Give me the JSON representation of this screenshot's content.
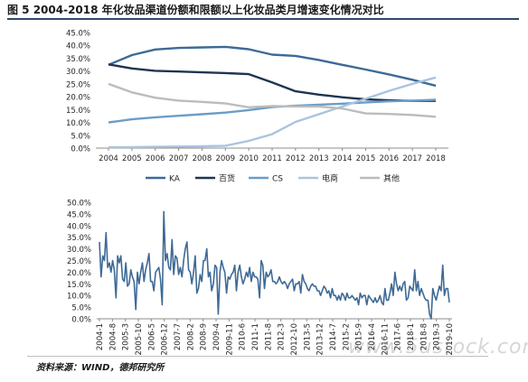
{
  "figure_title": "图 5 2004-2018 年化妆品渠道份额和限额以上化妆品类月增速变化情况对比",
  "source_text": "资料来源：WIND，德邦研究所",
  "watermark": "www.5ustock.com",
  "chart_data": [
    {
      "type": "line",
      "x": [
        "2004",
        "2005",
        "2006",
        "2007",
        "2008",
        "2009",
        "2010",
        "2011",
        "2012",
        "2013",
        "2014",
        "2015",
        "2016",
        "2017",
        "2018"
      ],
      "ylim": [
        0,
        45
      ],
      "yticks": [
        "0.0%",
        "5.0%",
        "10.0%",
        "15.0%",
        "20.0%",
        "25.0%",
        "30.0%",
        "35.0%",
        "40.0%",
        "45.0%"
      ],
      "legend_position": "bottom",
      "grid": false,
      "series": [
        {
          "name": "KA",
          "color": "#3e6a96",
          "values": [
            32.4,
            36.2,
            38.4,
            39.0,
            39.2,
            39.4,
            38.5,
            36.4,
            35.9,
            34.3,
            32.4,
            30.6,
            28.7,
            26.6,
            24.3
          ]
        },
        {
          "name": "百货",
          "color": "#1f3550",
          "values": [
            32.6,
            31.0,
            30.1,
            29.8,
            29.5,
            29.2,
            28.8,
            25.6,
            22.1,
            20.8,
            19.8,
            19.0,
            18.6,
            18.4,
            18.4
          ]
        },
        {
          "name": "CS",
          "color": "#6b9dc8",
          "values": [
            10.0,
            11.2,
            12.0,
            12.6,
            13.2,
            13.8,
            14.8,
            16.0,
            16.5,
            16.9,
            17.3,
            17.8,
            18.2,
            18.5,
            18.8
          ]
        },
        {
          "name": "电商",
          "color": "#a9c4de",
          "values": [
            0.3,
            0.4,
            0.5,
            0.6,
            0.7,
            0.9,
            2.8,
            5.4,
            10.2,
            13.2,
            16.2,
            19.2,
            22.3,
            25.0,
            27.5
          ]
        },
        {
          "name": "其他",
          "color": "#bcbcbc",
          "values": [
            25.0,
            21.7,
            19.6,
            18.5,
            18.0,
            17.4,
            15.9,
            16.4,
            16.2,
            16.2,
            15.4,
            13.5,
            13.3,
            12.9,
            12.2
          ]
        }
      ]
    },
    {
      "type": "line",
      "ylim": [
        0,
        50
      ],
      "yticks": [
        "0.0%",
        "5.0%",
        "10.0%",
        "15.0%",
        "20.0%",
        "25.0%",
        "30.0%",
        "35.0%",
        "40.0%",
        "45.0%",
        "50.0%"
      ],
      "xticks": [
        "2004-1",
        "2004-8",
        "2005-3",
        "2005-10",
        "2006-5",
        "2006-12",
        "2007-7",
        "2008-2",
        "2008-9",
        "2009-4",
        "2009-11",
        "2010-6",
        "2011-1",
        "2011-8",
        "2012-3",
        "2012-10",
        "2013-5",
        "2013-12",
        "2014-7",
        "2015-2",
        "2015-9",
        "2016-4",
        "2016-11",
        "2017-6",
        "2018-1",
        "2018-8",
        "2019-3",
        "2019-10"
      ],
      "grid": false,
      "series": [
        {
          "name": "",
          "color": "#3e6a96",
          "values": [
            33,
            18,
            27,
            25,
            37,
            22,
            24,
            20,
            25,
            21,
            9,
            27,
            24,
            27,
            17,
            16,
            24,
            14,
            15,
            21,
            18,
            16,
            4,
            20,
            15,
            20,
            24,
            16,
            21,
            24,
            28,
            16,
            16,
            12,
            20,
            21,
            22,
            17,
            6,
            46,
            25,
            28,
            22,
            21,
            34,
            19,
            27,
            26,
            19,
            22,
            18,
            25,
            30,
            33,
            21,
            20,
            15,
            20,
            27,
            11,
            13,
            19,
            16,
            25,
            25,
            30,
            18,
            20,
            12,
            15,
            23,
            22,
            2,
            20,
            25,
            22,
            20,
            11,
            18,
            17,
            19,
            20,
            23,
            12,
            20,
            23,
            18,
            15,
            17,
            20,
            18,
            22,
            16,
            20,
            18,
            18,
            17,
            9,
            25,
            23,
            13,
            20,
            18,
            19,
            21,
            16,
            16,
            15,
            16,
            18,
            16,
            15,
            16,
            15,
            13,
            15,
            16,
            17,
            12,
            15,
            15,
            16,
            11,
            19,
            16,
            15,
            13,
            12,
            14,
            15,
            14,
            14,
            12,
            12,
            10,
            12,
            14,
            13,
            11,
            12,
            9,
            13,
            10,
            10,
            8,
            10,
            8,
            11,
            10,
            8,
            11,
            9,
            9,
            10,
            9,
            8,
            9,
            6,
            11,
            9,
            10,
            10,
            6,
            10,
            9,
            8,
            7,
            9,
            7,
            8,
            10,
            7,
            6,
            13,
            8,
            8,
            11,
            15,
            10,
            20,
            15,
            12,
            14,
            12,
            15,
            16,
            8,
            9,
            14,
            13,
            12,
            21,
            12,
            16,
            10,
            13,
            11,
            9,
            8,
            8,
            2,
            0,
            13,
            10,
            8,
            11,
            14,
            12,
            23,
            10,
            13,
            13,
            7
          ]
        }
      ]
    }
  ]
}
